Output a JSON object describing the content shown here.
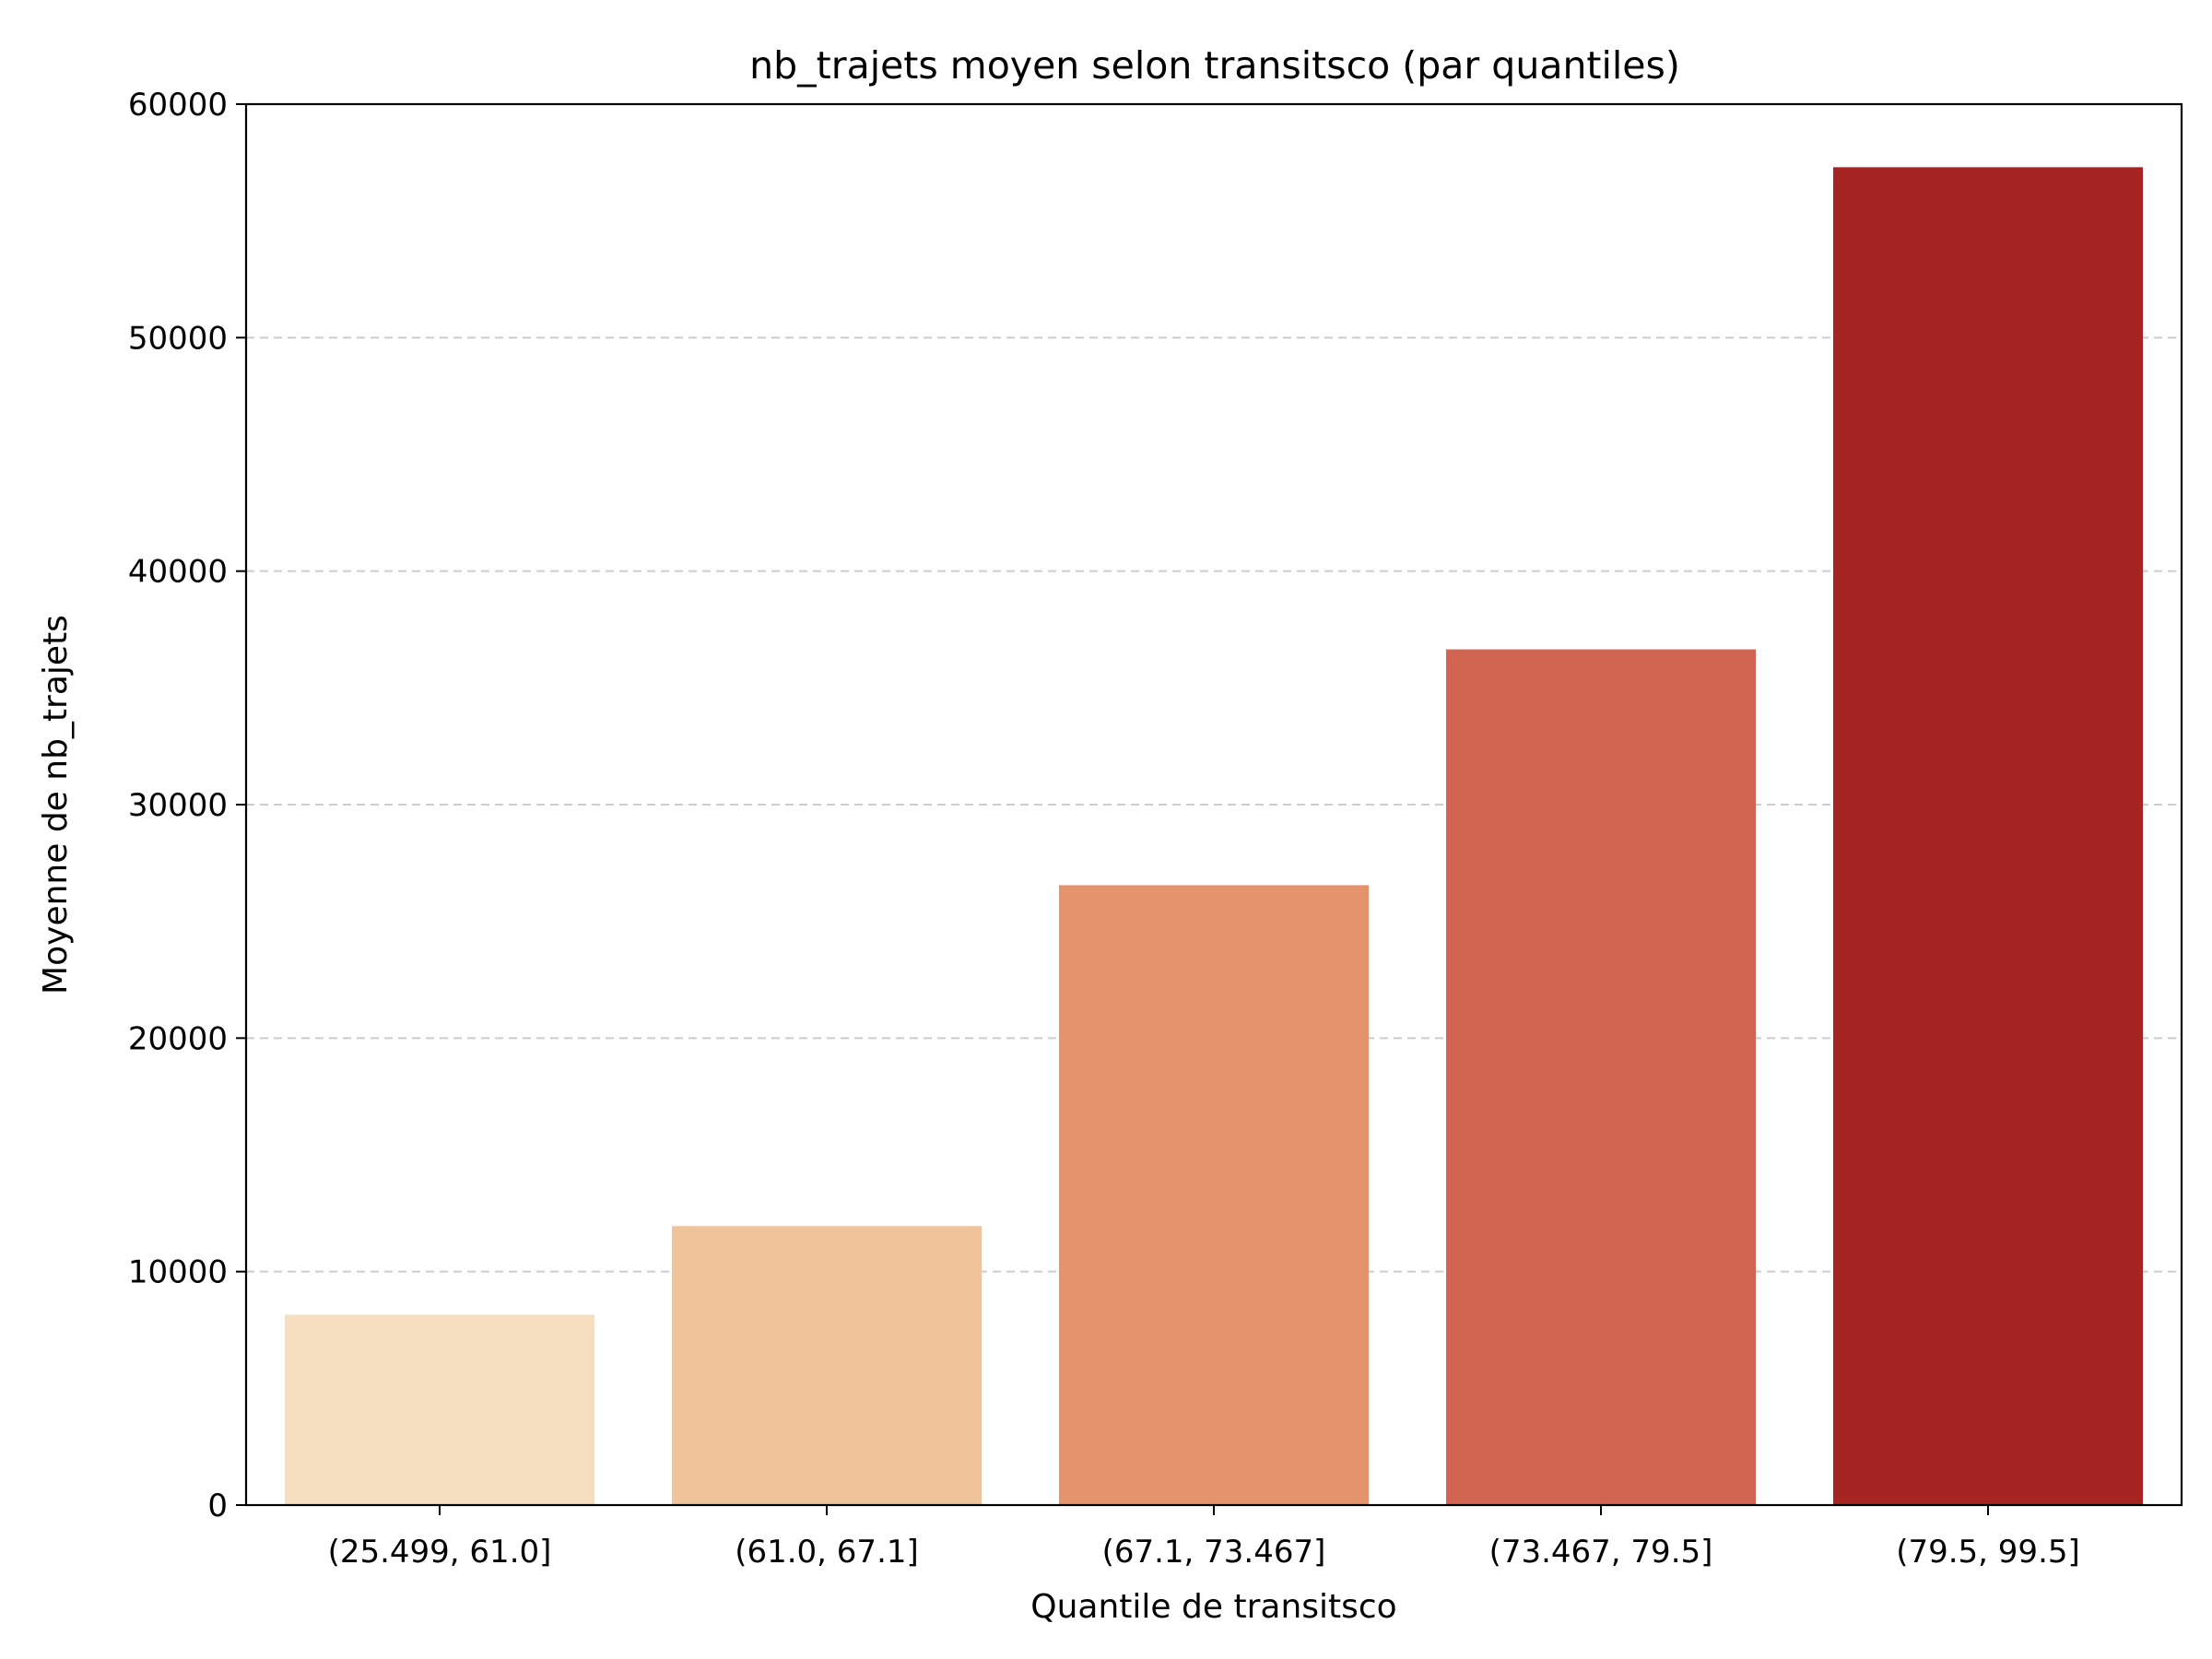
{
  "chart_data": {
    "type": "bar",
    "title": "nb_trajets moyen selon transitsco (par quantiles)",
    "xlabel": "Quantile de transitsco",
    "ylabel": "Moyenne de nb_trajets",
    "categories": [
      "(25.499, 61.0]",
      "(61.0, 67.1]",
      "(67.1, 73.467]",
      "(73.467, 79.5]",
      "(79.5, 99.5]"
    ],
    "values": [
      8150,
      11950,
      26550,
      36650,
      57300
    ],
    "colors": [
      "#f6dec0",
      "#efc49a",
      "#e5936d",
      "#d26552",
      "#a62422"
    ],
    "ylim": [
      0,
      60000
    ],
    "yticks": [
      "0",
      "10000",
      "20000",
      "30000",
      "40000",
      "50000",
      "60000"
    ],
    "grid": "y-dashed",
    "legend": "none"
  }
}
